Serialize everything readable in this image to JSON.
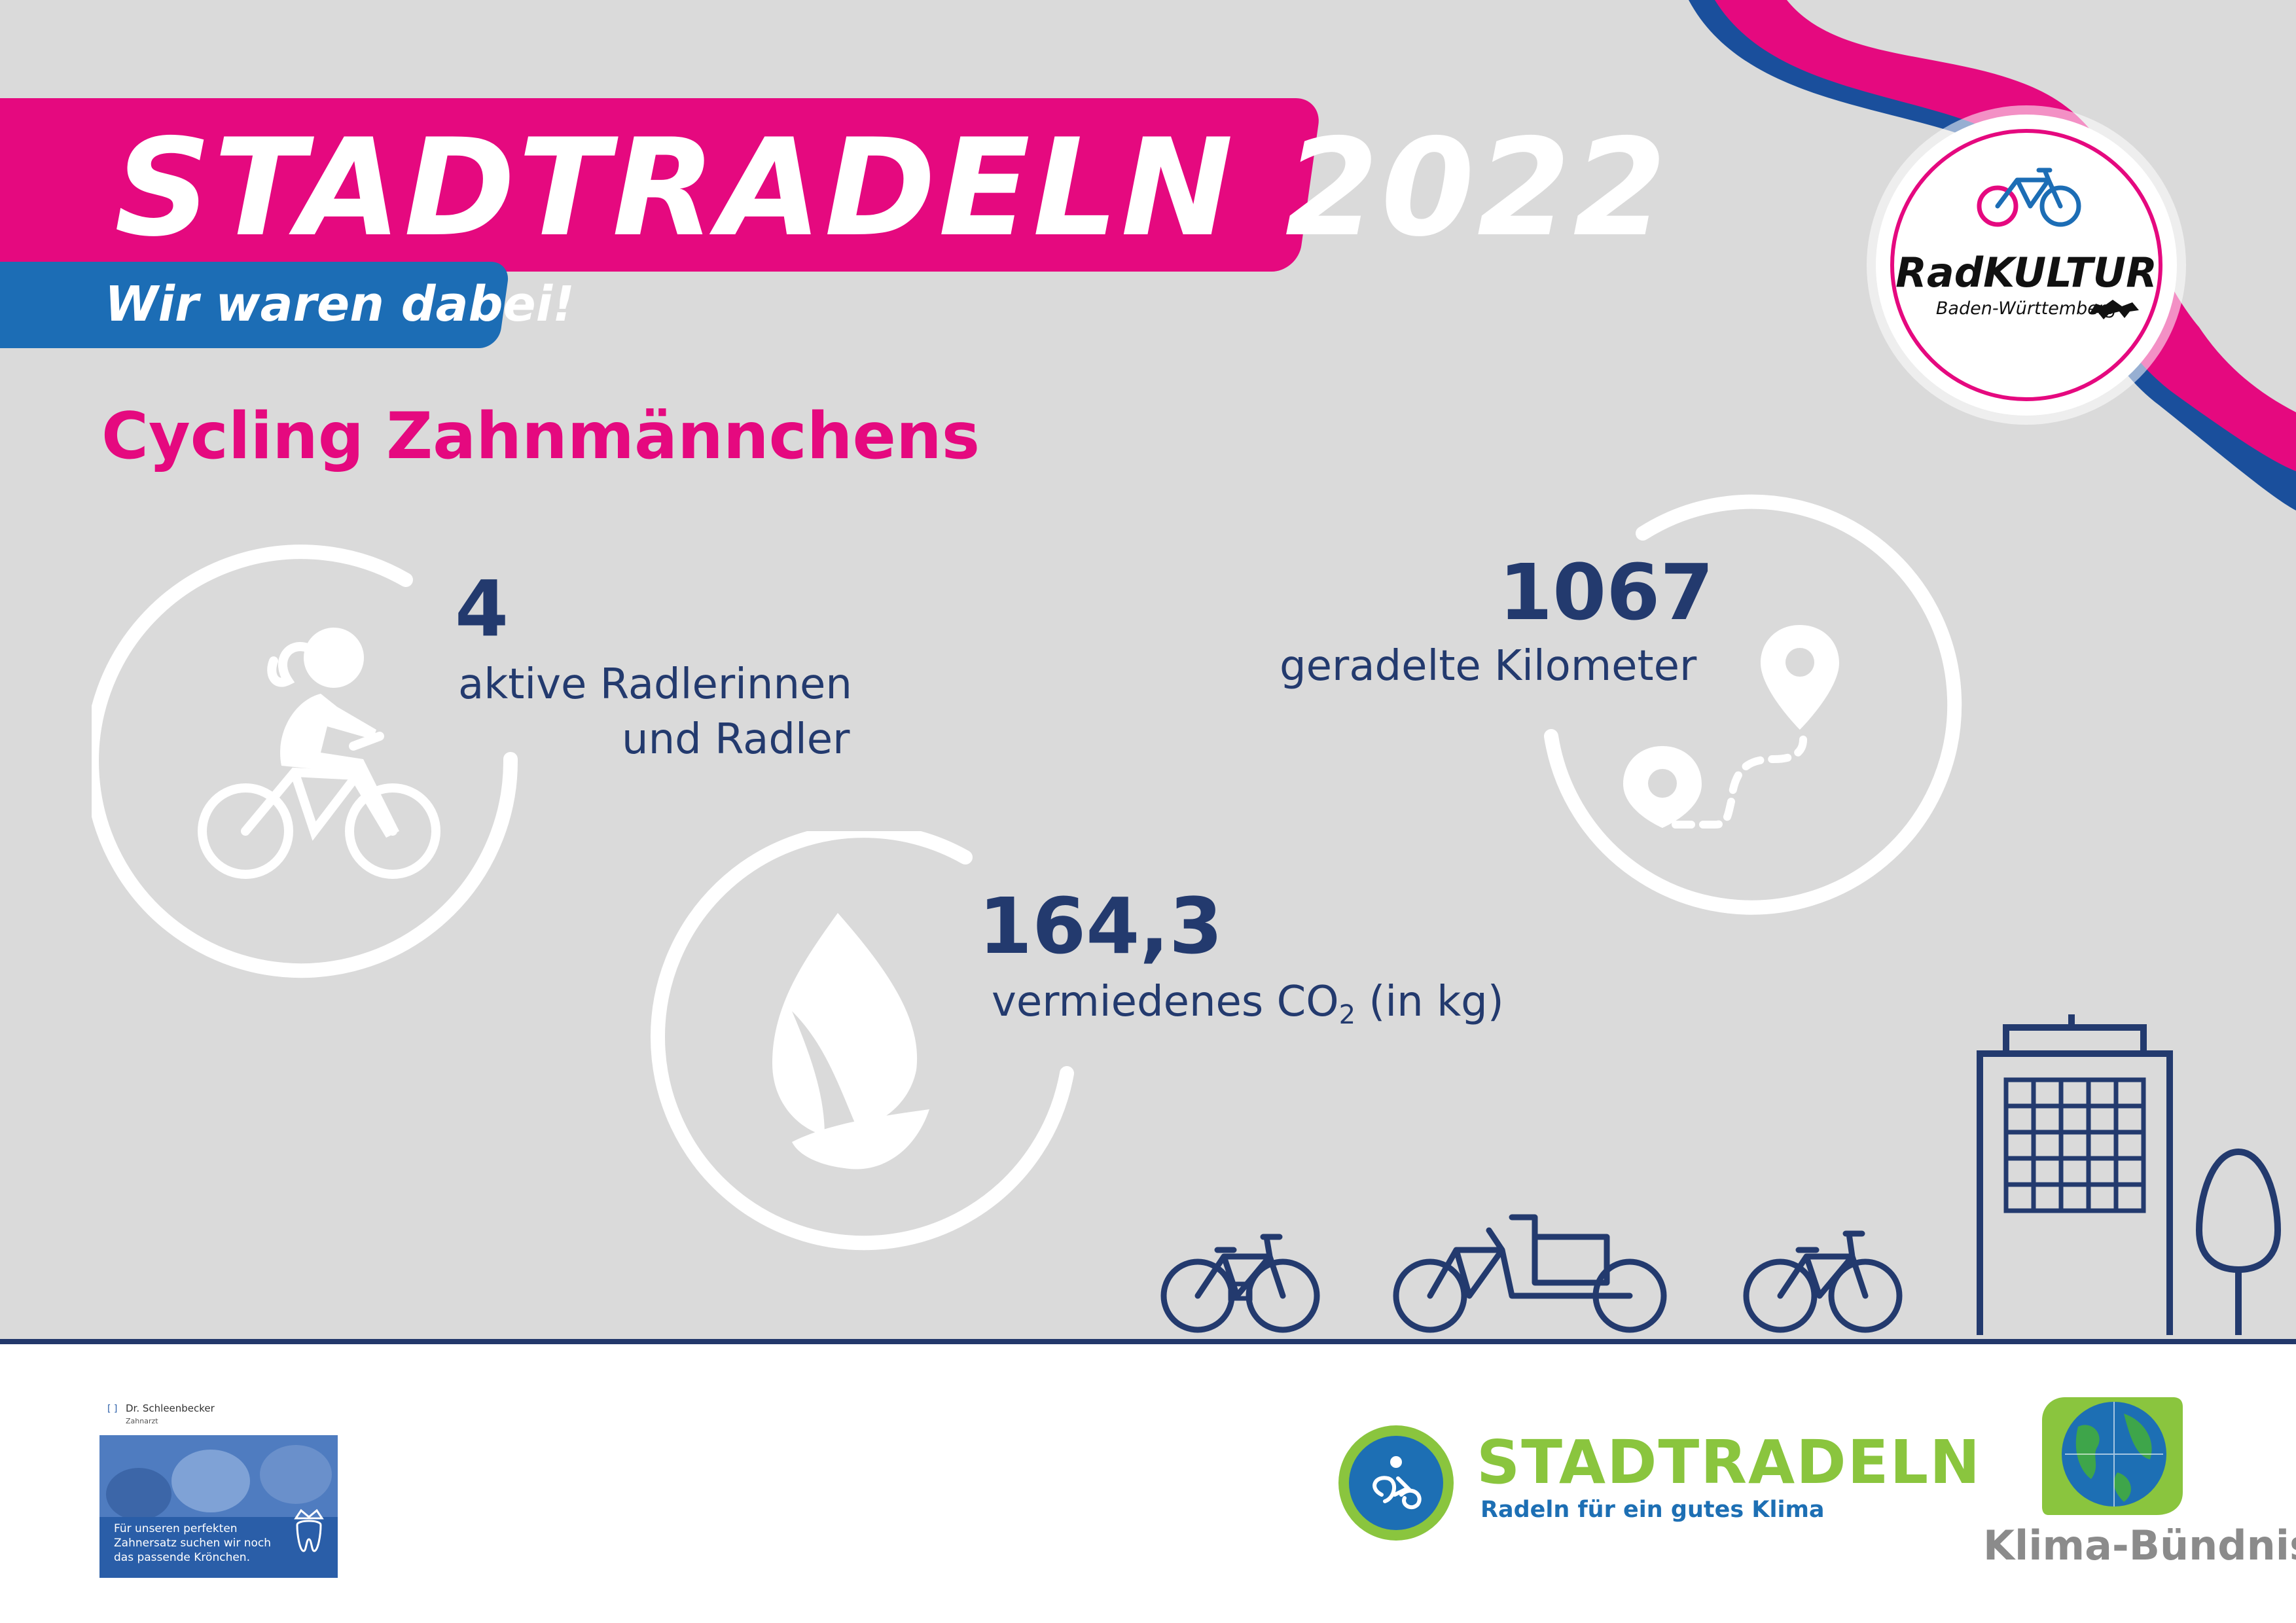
{
  "header": {
    "title": "STADTRADELN 2022",
    "subtitle": "Wir waren dabei!"
  },
  "team_name": "Cycling Zahnmännchens",
  "stats": {
    "cyclists": {
      "value": "4",
      "label_line1": "aktive Radlerinnen",
      "label_line2": "und Radler",
      "icon": "cyclist-icon"
    },
    "kilometers": {
      "value": "1067",
      "label": "geradelte Kilometer",
      "icon": "route-pin-icon"
    },
    "co2": {
      "value": "164,3",
      "label_prefix": "vermiedenes CO",
      "label_sub": "2",
      "label_suffix": " (in kg)",
      "icon": "leaf-icon"
    }
  },
  "badge": {
    "name": "RadKULTUR",
    "region": "Baden-Württemberg"
  },
  "footer": {
    "sponsor": {
      "name": "Dr. Schleenbecker",
      "role": "Zahnarzt",
      "text_line1": "Für unseren perfekten",
      "text_line2": "Zahnersatz suchen wir noch",
      "text_line3": "das passende Krönchen."
    },
    "stadtradeln_logo": {
      "name": "STADTRADELN",
      "tagline": "Radeln für ein gutes Klima"
    },
    "klima_logo": {
      "name": "Klima-Bündnis"
    }
  },
  "colors": {
    "magenta": "#e5097f",
    "blue": "#1c6db5",
    "navy": "#233a6e",
    "green": "#8ac53e",
    "background": "#dadada"
  }
}
